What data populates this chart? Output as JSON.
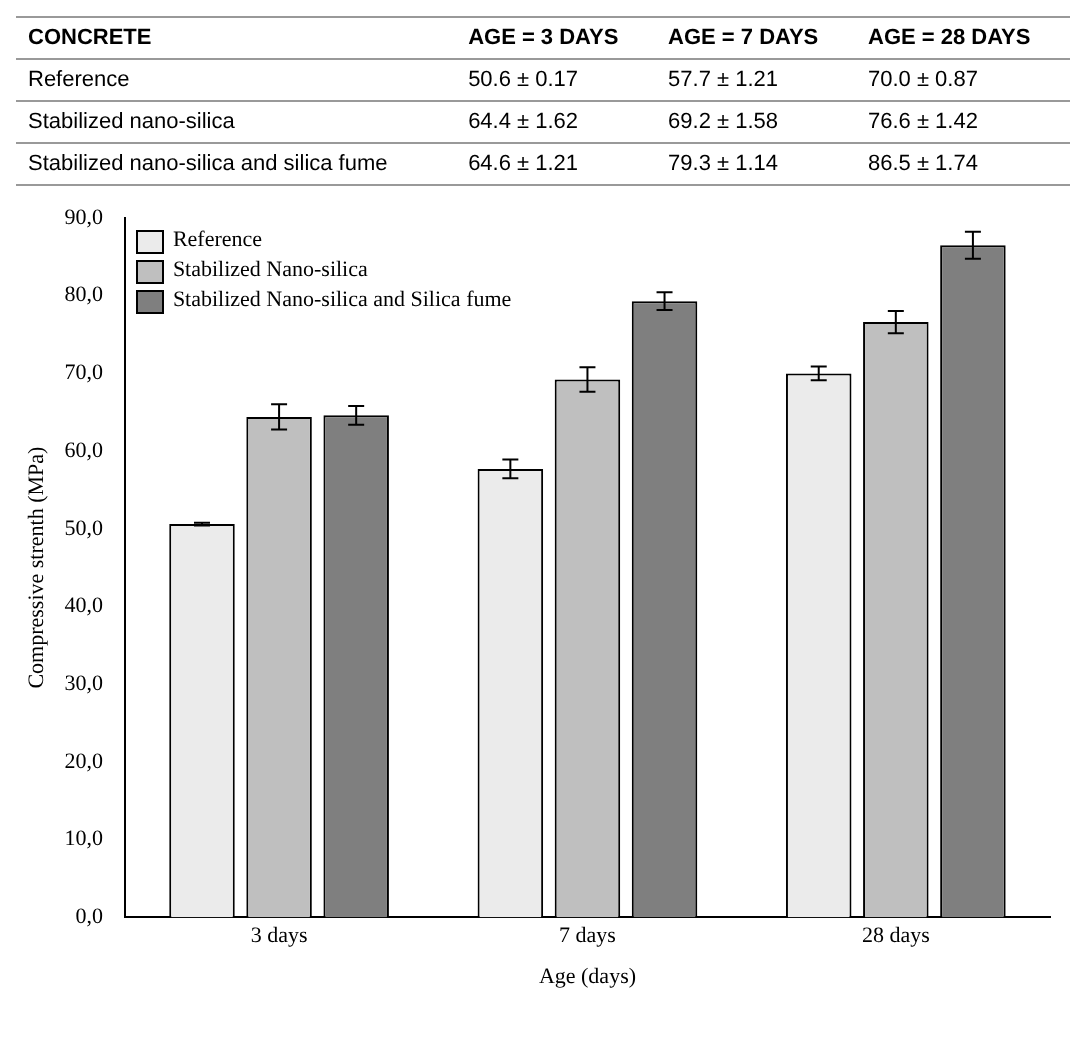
{
  "chart_data": {
    "type": "bar",
    "xlabel": "Age (days)",
    "ylabel": "Compressive strenth (MPa)",
    "categories": [
      "3 days",
      "7 days",
      "28 days"
    ],
    "series": [
      {
        "name": "Reference",
        "color": "#ebebeb",
        "values": [
          50.6,
          57.7,
          70.0
        ],
        "errors": [
          0.17,
          1.21,
          0.87
        ]
      },
      {
        "name": "Stabilized Nano-silica",
        "color": "#bfbfbf",
        "values": [
          64.4,
          69.2,
          76.6
        ],
        "errors": [
          1.62,
          1.58,
          1.42
        ]
      },
      {
        "name": "Stabilized Nano-silica and Silica  fume",
        "color": "#7f7f7f",
        "values": [
          64.6,
          79.3,
          86.5
        ],
        "errors": [
          1.21,
          1.14,
          1.74
        ]
      }
    ],
    "ylim": [
      0,
      90
    ],
    "yticks": [
      {
        "value": 0,
        "label": "0,0"
      },
      {
        "value": 10,
        "label": "10,0"
      },
      {
        "value": 20,
        "label": "20,0"
      },
      {
        "value": 30,
        "label": "30,0"
      },
      {
        "value": 40,
        "label": "40,0"
      },
      {
        "value": 50,
        "label": "50,0"
      },
      {
        "value": 60,
        "label": "60,0"
      },
      {
        "value": 70,
        "label": "70,0"
      },
      {
        "value": 80,
        "label": "80,0"
      },
      {
        "value": 90,
        "label": "90,0"
      }
    ],
    "grid": false,
    "legend": "top left",
    "annotations": [
      "CONCRETE",
      "AGE = 3 DAYS",
      "AGE = 7 DAYS",
      "AGE = 28 DAYS",
      "Reference",
      "50.6 ± 0.17",
      "57.7 ± 1.21",
      "70.0 ± 0.87",
      "Stabilized nano-silica",
      "64.4 ± 1.62",
      "69.2 ± 1.58",
      "76.6 ± 1.42",
      "Stabilized nano-silica and silica fume",
      "64.6 ± 1.21",
      "79.3 ± 1.14",
      "86.5 ± 1.74"
    ]
  }
}
